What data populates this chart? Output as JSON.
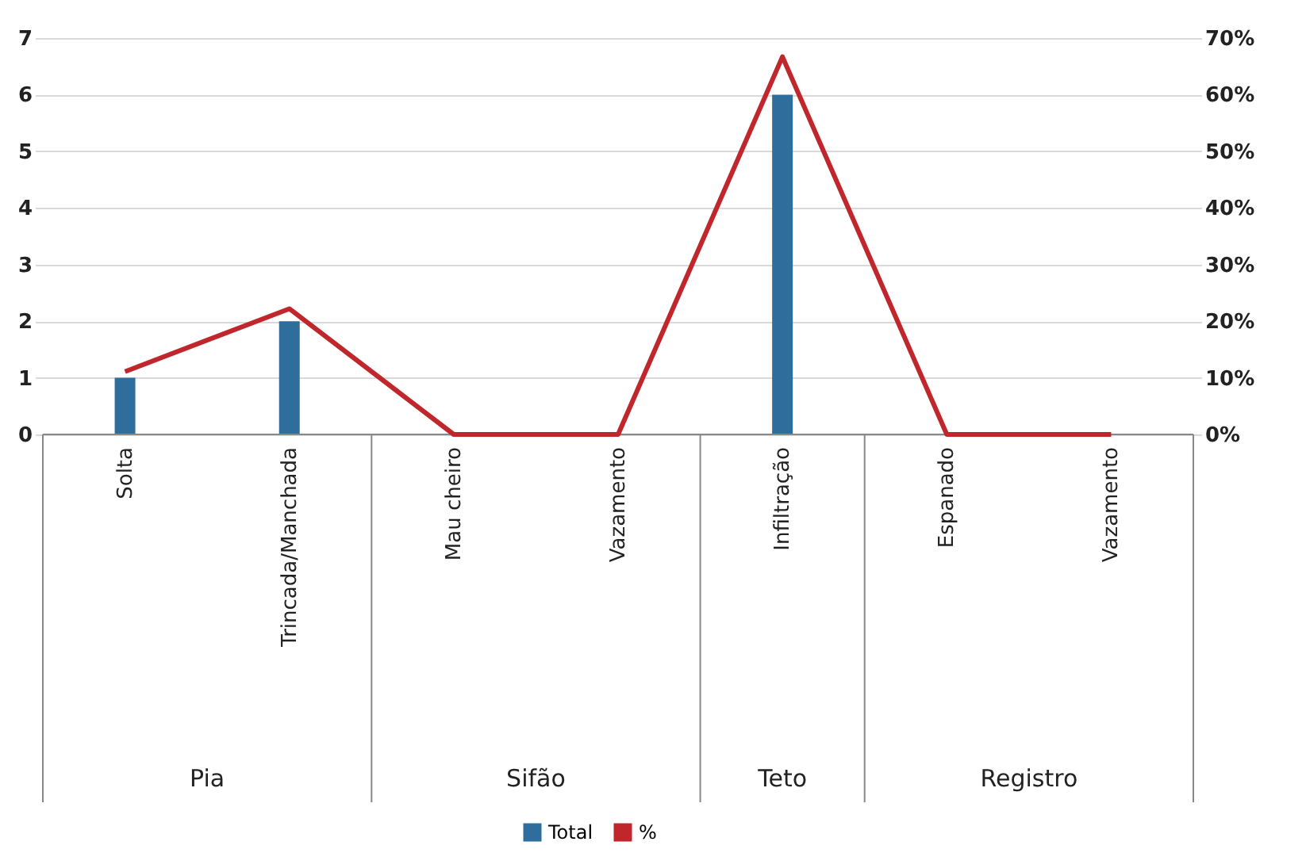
{
  "chart_data": {
    "type": "bar",
    "categories": [
      "Solta",
      "Trincada/Manchada",
      "Mau cheiro",
      "Vazamento",
      "Infiltração",
      "Espanado",
      "Vazamento"
    ],
    "series": [
      {
        "name": "Total",
        "color": "#2f6e9c",
        "values": [
          1,
          2,
          0,
          0,
          6,
          0,
          0
        ]
      },
      {
        "name": "%",
        "type": "line",
        "axis": "y2",
        "color": "#c0272d",
        "values": [
          11.1,
          22.2,
          0,
          0,
          66.7,
          0,
          0
        ]
      }
    ],
    "ylim": [
      0,
      7
    ],
    "yticks": [
      0,
      1,
      2,
      3,
      4,
      5,
      6,
      7
    ],
    "y2lim": [
      0,
      70
    ],
    "y2ticks": [
      {
        "value": 0,
        "label": "0%"
      },
      {
        "value": 10,
        "label": "10%"
      },
      {
        "value": 20,
        "label": "20%"
      },
      {
        "value": 30,
        "label": "30%"
      },
      {
        "value": 40,
        "label": "40%"
      },
      {
        "value": 50,
        "label": "50%"
      },
      {
        "value": 60,
        "label": "60%"
      },
      {
        "value": 70,
        "label": "70%"
      }
    ],
    "annotations": [
      "Pia",
      "Sifão",
      "Teto",
      "Registro"
    ],
    "grid": "y",
    "legend": "bottom",
    "marker": "none",
    "line_style": "solid"
  }
}
